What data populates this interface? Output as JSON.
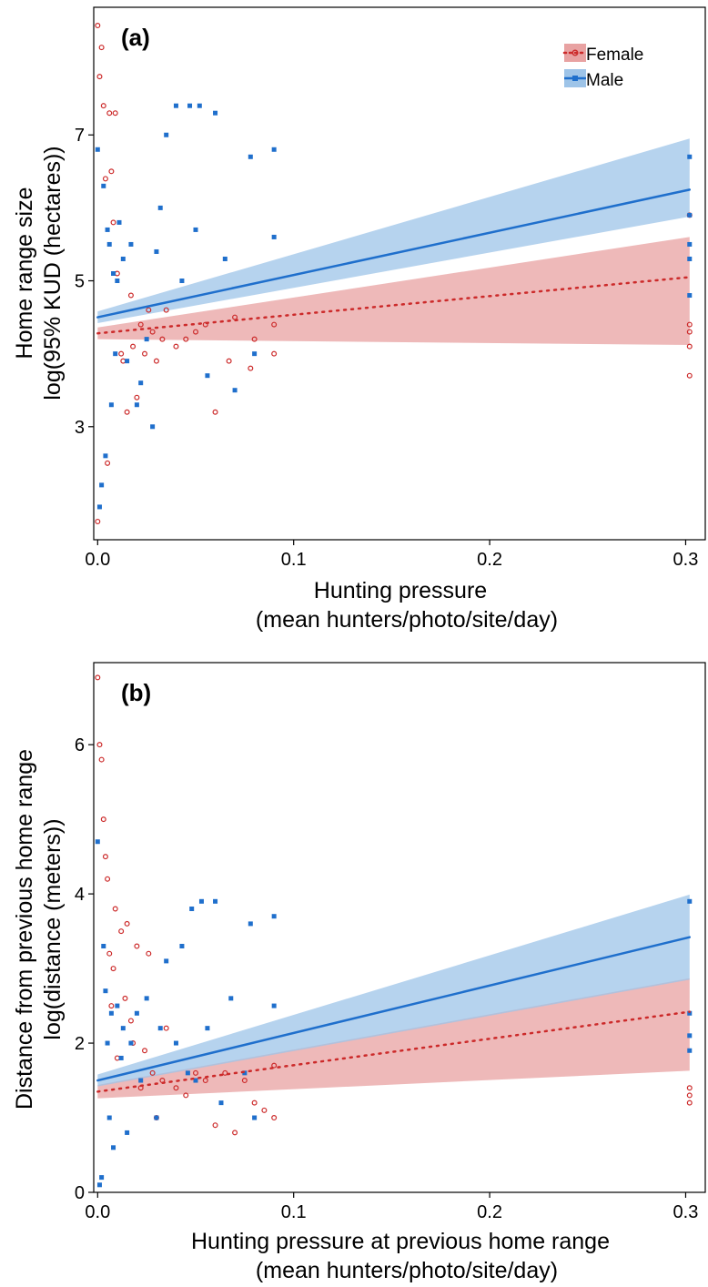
{
  "chart_data": [
    {
      "type": "scatter",
      "panel_label": "(a)",
      "title": "",
      "xlabel": "Hunting pressure",
      "xlabel_line2": "(mean hunters/photo/site/day)",
      "ylabel": "Home range size",
      "ylabel_line2": "log(95% KUD (hectares))",
      "xlim": [
        -0.002,
        0.31
      ],
      "ylim": [
        1.45,
        8.75
      ],
      "x_ticks": [
        0.0,
        0.1,
        0.2,
        0.3
      ],
      "x_tick_labels": [
        "0.0",
        "0.1",
        "0.2",
        "0.3"
      ],
      "y_ticks": [
        3,
        5,
        7
      ],
      "y_tick_labels": [
        "3",
        "5",
        "7"
      ],
      "legend": {
        "position": "top-right",
        "entries": [
          "Female",
          "Male"
        ]
      },
      "series": [
        {
          "name": "Female",
          "color": "#cc2a2a",
          "band_color": "#e8a2a2",
          "line_style": "dotted",
          "marker": "open-circle",
          "fit": {
            "x": [
              0.0,
              0.302
            ],
            "y": [
              4.28,
              5.05
            ]
          },
          "ci_lower": [
            4.2,
            4.12
          ],
          "ci_upper": [
            4.36,
            5.6
          ],
          "points": {
            "x": [
              0.0,
              0.0,
              0.001,
              0.002,
              0.003,
              0.004,
              0.005,
              0.006,
              0.007,
              0.008,
              0.009,
              0.01,
              0.012,
              0.013,
              0.015,
              0.017,
              0.018,
              0.02,
              0.022,
              0.024,
              0.026,
              0.028,
              0.03,
              0.033,
              0.035,
              0.04,
              0.045,
              0.05,
              0.055,
              0.06,
              0.067,
              0.07,
              0.078,
              0.08,
              0.09,
              0.09,
              0.302,
              0.302,
              0.302,
              0.302,
              0.302
            ],
            "y": [
              8.5,
              1.7,
              7.8,
              8.2,
              7.4,
              6.4,
              2.5,
              7.3,
              6.5,
              5.8,
              7.3,
              5.1,
              4.0,
              3.9,
              3.2,
              4.8,
              4.1,
              3.4,
              4.4,
              4.0,
              4.6,
              4.3,
              3.9,
              4.2,
              4.6,
              4.1,
              4.2,
              4.3,
              4.4,
              3.2,
              3.9,
              4.5,
              3.8,
              4.2,
              4.4,
              4.0,
              5.9,
              4.4,
              4.3,
              4.1,
              3.7
            ]
          }
        },
        {
          "name": "Male",
          "color": "#1f6fcc",
          "band_color": "#9ec4e8",
          "line_style": "solid",
          "marker": "square",
          "fit": {
            "x": [
              0.0,
              0.302
            ],
            "y": [
              4.5,
              6.25
            ]
          },
          "ci_lower": [
            4.42,
            5.88
          ],
          "ci_upper": [
            4.58,
            6.95
          ],
          "points": {
            "x": [
              0.0,
              0.001,
              0.002,
              0.003,
              0.004,
              0.005,
              0.006,
              0.007,
              0.008,
              0.009,
              0.01,
              0.011,
              0.013,
              0.015,
              0.017,
              0.02,
              0.022,
              0.025,
              0.028,
              0.03,
              0.032,
              0.035,
              0.04,
              0.043,
              0.047,
              0.05,
              0.052,
              0.056,
              0.06,
              0.065,
              0.07,
              0.078,
              0.08,
              0.09,
              0.09,
              0.302,
              0.302,
              0.302,
              0.302,
              0.302
            ],
            "y": [
              6.8,
              1.9,
              2.2,
              6.3,
              2.6,
              5.7,
              5.5,
              3.3,
              5.1,
              4.0,
              5.0,
              5.8,
              5.3,
              3.9,
              5.5,
              3.3,
              3.6,
              4.2,
              3.0,
              5.4,
              6.0,
              7.0,
              7.4,
              5.0,
              7.4,
              5.7,
              7.4,
              3.7,
              7.3,
              5.3,
              3.5,
              6.7,
              4.0,
              6.8,
              5.6,
              6.7,
              5.9,
              5.5,
              5.3,
              4.8
            ]
          }
        }
      ]
    },
    {
      "type": "scatter",
      "panel_label": "(b)",
      "title": "",
      "xlabel": "Hunting pressure at previous home range",
      "xlabel_line2": "(mean hunters/photo/site/day)",
      "ylabel": "Distance from previous home range",
      "ylabel_line2": "log(distance (meters))",
      "xlim": [
        -0.002,
        0.31
      ],
      "ylim": [
        0,
        7.1
      ],
      "x_ticks": [
        0.0,
        0.1,
        0.2,
        0.3
      ],
      "x_tick_labels": [
        "0.0",
        "0.1",
        "0.2",
        "0.3"
      ],
      "y_ticks": [
        0,
        2,
        4,
        6
      ],
      "y_tick_labels": [
        "0",
        "2",
        "4",
        "6"
      ],
      "series": [
        {
          "name": "Female",
          "color": "#cc2a2a",
          "band_color": "#e8a2a2",
          "line_style": "dotted",
          "marker": "open-circle",
          "fit": {
            "x": [
              0.0,
              0.302
            ],
            "y": [
              1.35,
              2.42
            ]
          },
          "ci_lower": [
            1.26,
            1.63
          ],
          "ci_upper": [
            1.44,
            2.87
          ],
          "points": {
            "x": [
              0.0,
              0.001,
              0.002,
              0.003,
              0.004,
              0.005,
              0.006,
              0.007,
              0.008,
              0.009,
              0.01,
              0.012,
              0.014,
              0.015,
              0.017,
              0.018,
              0.02,
              0.022,
              0.024,
              0.026,
              0.028,
              0.03,
              0.033,
              0.035,
              0.04,
              0.045,
              0.05,
              0.055,
              0.06,
              0.065,
              0.07,
              0.075,
              0.08,
              0.085,
              0.09,
              0.09,
              0.302,
              0.302,
              0.302
            ],
            "y": [
              6.9,
              6.0,
              5.8,
              5.0,
              4.5,
              4.2,
              3.2,
              2.5,
              3.0,
              3.8,
              1.8,
              3.5,
              2.6,
              3.6,
              2.3,
              2.0,
              3.3,
              1.4,
              1.9,
              3.2,
              1.6,
              1.0,
              1.5,
              2.2,
              1.4,
              1.3,
              1.6,
              1.5,
              0.9,
              1.6,
              0.8,
              1.5,
              1.2,
              1.1,
              1.7,
              1.0,
              1.4,
              1.3,
              1.2
            ]
          }
        },
        {
          "name": "Male",
          "color": "#1f6fcc",
          "band_color": "#9ec4e8",
          "line_style": "solid",
          "marker": "square",
          "fit": {
            "x": [
              0.0,
              0.302
            ],
            "y": [
              1.5,
              3.42
            ]
          },
          "ci_lower": [
            1.42,
            2.85
          ],
          "ci_upper": [
            1.58,
            3.99
          ],
          "points": {
            "x": [
              0.0,
              0.001,
              0.002,
              0.003,
              0.004,
              0.005,
              0.006,
              0.007,
              0.008,
              0.01,
              0.012,
              0.013,
              0.015,
              0.017,
              0.02,
              0.022,
              0.025,
              0.03,
              0.032,
              0.035,
              0.04,
              0.043,
              0.046,
              0.048,
              0.05,
              0.053,
              0.056,
              0.06,
              0.063,
              0.068,
              0.075,
              0.078,
              0.08,
              0.09,
              0.09,
              0.302,
              0.302,
              0.302,
              0.302
            ],
            "y": [
              4.7,
              0.1,
              0.2,
              3.3,
              2.7,
              2.0,
              1.0,
              2.4,
              0.6,
              2.5,
              1.8,
              2.2,
              0.8,
              2.0,
              2.4,
              1.5,
              2.6,
              1.0,
              2.2,
              3.1,
              2.0,
              3.3,
              1.6,
              3.8,
              1.5,
              3.9,
              2.2,
              3.9,
              1.2,
              2.6,
              1.6,
              3.6,
              1.0,
              3.7,
              2.5,
              3.9,
              2.4,
              2.1,
              1.9
            ]
          }
        }
      ]
    }
  ]
}
